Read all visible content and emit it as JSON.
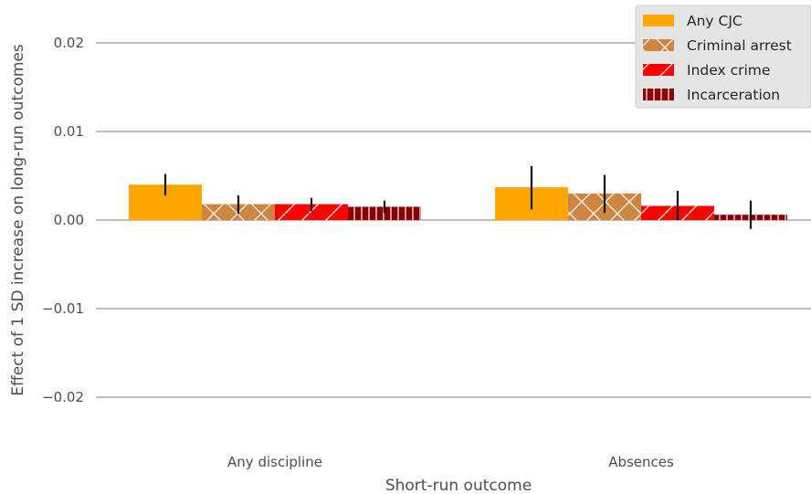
{
  "chart_data": {
    "type": "bar",
    "title": "",
    "xlabel": "Short-run outcome",
    "ylabel": "Effect of 1 SD increase on long-run outcomes",
    "categories": [
      "Any discipline",
      "Absences"
    ],
    "ylim": [
      -0.025,
      0.025
    ],
    "yticks": [
      -0.02,
      -0.01,
      0.0,
      0.01,
      0.02
    ],
    "ytick_labels": [
      "−0.02",
      "−0.01",
      "0.00",
      "0.01",
      "0.02"
    ],
    "grid": "horizontal",
    "legend_position": "top-right",
    "series": [
      {
        "name": "Any CJC",
        "color": "#FFA500",
        "hatch": "none",
        "values": [
          0.004,
          0.0037
        ],
        "ci_low": [
          0.0028,
          0.0012
        ],
        "ci_high": [
          0.0052,
          0.0061
        ]
      },
      {
        "name": "Criminal arrest",
        "color": "#CD853F",
        "hatch": "cross",
        "values": [
          0.0018,
          0.003
        ],
        "ci_low": [
          0.0007,
          0.0008
        ],
        "ci_high": [
          0.0028,
          0.0051
        ]
      },
      {
        "name": "Index crime",
        "color": "#FF0000",
        "hatch": "diagonal",
        "values": [
          0.0018,
          0.0016
        ],
        "ci_low": [
          0.001,
          0.0
        ],
        "ci_high": [
          0.0025,
          0.0033
        ]
      },
      {
        "name": "Incarceration",
        "color": "#8B0000",
        "hatch": "vertical",
        "values": [
          0.0015,
          0.0006
        ],
        "ci_low": [
          0.0008,
          -0.001
        ],
        "ci_high": [
          0.0022,
          0.0022
        ]
      }
    ]
  }
}
